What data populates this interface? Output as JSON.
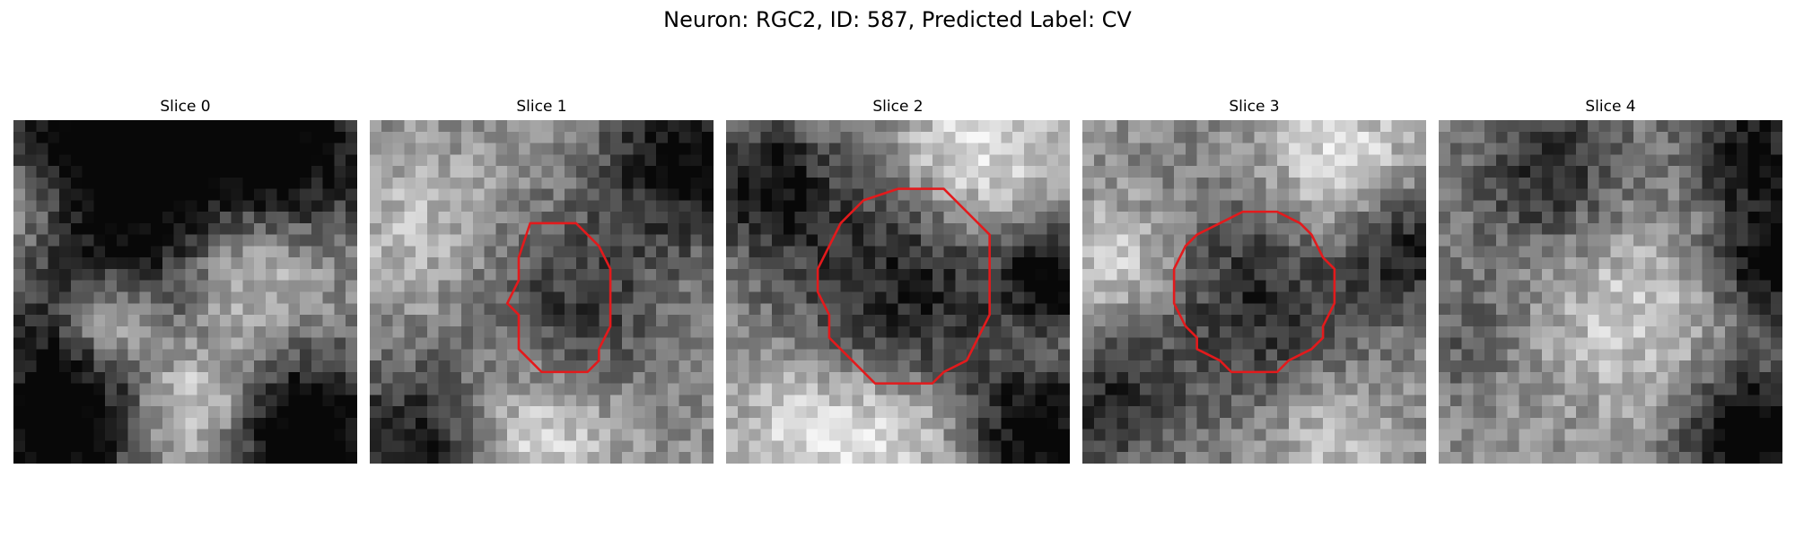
{
  "figure": {
    "title": "Neuron: RGC2, ID: 587, Predicted Label: CV",
    "grid_size": 30,
    "contour_color": "#e31a1c",
    "colormap": "gray"
  },
  "panels": [
    {
      "title": "Slice 0",
      "has_contour": false,
      "blobs": [
        {
          "x": 7,
          "y": 2,
          "r": 7,
          "v": -0.7
        },
        {
          "x": 22,
          "y": 2,
          "r": 7,
          "v": -0.7
        },
        {
          "x": 8,
          "y": 17,
          "r": 3,
          "v": 0.6
        },
        {
          "x": 8,
          "y": 17,
          "r": 7,
          "v": -0.45
        },
        {
          "x": 20,
          "y": 12,
          "r": 5,
          "v": 0.45
        },
        {
          "x": 15,
          "y": 24,
          "r": 4,
          "v": 0.5
        },
        {
          "x": 3,
          "y": 27,
          "r": 5,
          "v": -0.6
        },
        {
          "x": 25,
          "y": 27,
          "r": 5,
          "v": -0.75
        },
        {
          "x": 1,
          "y": 7,
          "r": 4,
          "v": 0.35
        }
      ]
    },
    {
      "title": "Slice 1",
      "has_contour": true,
      "blobs": [
        {
          "x": 17,
          "y": 16,
          "r": 6,
          "v": -0.35
        },
        {
          "x": 27,
          "y": 3,
          "r": 5,
          "v": -0.55
        },
        {
          "x": 3,
          "y": 28,
          "r": 5,
          "v": -0.5
        },
        {
          "x": 14,
          "y": 27,
          "r": 5,
          "v": 0.35
        },
        {
          "x": 4,
          "y": 9,
          "r": 5,
          "v": 0.2
        }
      ],
      "contour": [
        [
          14,
          9
        ],
        [
          16,
          9
        ],
        [
          18,
          9
        ],
        [
          19,
          10
        ],
        [
          20,
          11
        ],
        [
          21,
          13
        ],
        [
          21,
          16
        ],
        [
          21,
          18
        ],
        [
          20,
          20
        ],
        [
          20,
          21
        ],
        [
          19,
          22
        ],
        [
          17,
          22
        ],
        [
          15,
          22
        ],
        [
          14,
          21
        ],
        [
          13,
          20
        ],
        [
          13,
          17
        ],
        [
          12,
          16
        ],
        [
          13,
          14
        ],
        [
          13,
          12
        ]
      ]
    },
    {
      "title": "Slice 2",
      "has_contour": true,
      "blobs": [
        {
          "x": 15,
          "y": 14,
          "r": 8,
          "v": -0.45
        },
        {
          "x": 21,
          "y": 3,
          "r": 5,
          "v": 0.45
        },
        {
          "x": 3,
          "y": 5,
          "r": 4,
          "v": -0.45
        },
        {
          "x": 7,
          "y": 26,
          "r": 5,
          "v": 0.35
        },
        {
          "x": 27,
          "y": 27,
          "r": 4,
          "v": -0.6
        },
        {
          "x": 28,
          "y": 13,
          "r": 3,
          "v": -0.5
        },
        {
          "x": 15,
          "y": 27,
          "r": 4,
          "v": 0.3
        }
      ],
      "contour": [
        [
          12,
          7
        ],
        [
          15,
          6
        ],
        [
          19,
          6
        ],
        [
          21,
          8
        ],
        [
          23,
          10
        ],
        [
          23,
          13
        ],
        [
          23,
          17
        ],
        [
          22,
          19
        ],
        [
          21,
          21
        ],
        [
          19,
          22
        ],
        [
          18,
          23
        ],
        [
          16,
          23
        ],
        [
          13,
          23
        ],
        [
          11,
          21
        ],
        [
          9,
          19
        ],
        [
          9,
          17
        ],
        [
          8,
          15
        ],
        [
          8,
          13
        ],
        [
          9,
          11
        ],
        [
          10,
          9
        ]
      ]
    },
    {
      "title": "Slice 3",
      "has_contour": true,
      "blobs": [
        {
          "x": 15,
          "y": 15,
          "r": 7,
          "v": -0.4
        },
        {
          "x": 22,
          "y": 4,
          "r": 5,
          "v": 0.4
        },
        {
          "x": 3,
          "y": 12,
          "r": 4,
          "v": 0.3
        },
        {
          "x": 28,
          "y": 10,
          "r": 4,
          "v": -0.45
        },
        {
          "x": 2,
          "y": 24,
          "r": 4,
          "v": -0.4
        },
        {
          "x": 21,
          "y": 27,
          "r": 4,
          "v": 0.25
        }
      ],
      "contour": [
        [
          10,
          10
        ],
        [
          12,
          9
        ],
        [
          14,
          8
        ],
        [
          17,
          8
        ],
        [
          19,
          9
        ],
        [
          20,
          10
        ],
        [
          21,
          12
        ],
        [
          22,
          13
        ],
        [
          22,
          16
        ],
        [
          21,
          18
        ],
        [
          21,
          19
        ],
        [
          20,
          20
        ],
        [
          18,
          21
        ],
        [
          17,
          22
        ],
        [
          15,
          22
        ],
        [
          13,
          22
        ],
        [
          12,
          21
        ],
        [
          10,
          20
        ],
        [
          10,
          19
        ],
        [
          9,
          18
        ],
        [
          8,
          16
        ],
        [
          8,
          13
        ],
        [
          9,
          11
        ]
      ]
    },
    {
      "title": "Slice 4",
      "has_contour": false,
      "blobs": [
        {
          "x": 9,
          "y": 4,
          "r": 5,
          "v": -0.4
        },
        {
          "x": 27,
          "y": 2,
          "r": 4,
          "v": -0.5
        },
        {
          "x": 29,
          "y": 12,
          "r": 4,
          "v": -0.6
        },
        {
          "x": 27,
          "y": 27,
          "r": 4,
          "v": -0.7
        },
        {
          "x": 16,
          "y": 16,
          "r": 6,
          "v": 0.25
        },
        {
          "x": 2,
          "y": 18,
          "r": 4,
          "v": -0.2
        }
      ]
    }
  ]
}
